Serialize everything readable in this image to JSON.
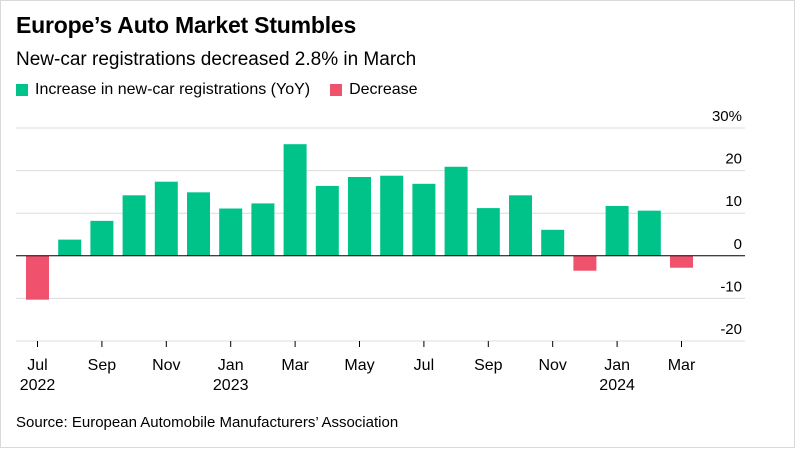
{
  "title": "Europe’s Auto Market Stumbles",
  "subtitle": "New-car registrations decreased 2.8% in March",
  "source": "Source: European Automobile Manufacturers’ Association",
  "colors": {
    "increase": "#00c389",
    "decrease": "#f0516c",
    "grid": "#dcdcdc",
    "axis": "#000000"
  },
  "chart_data": {
    "type": "bar",
    "legend": [
      {
        "name": "Increase in new-car registrations (YoY)",
        "color": "#00c389"
      },
      {
        "name": "Decrease",
        "color": "#f0516c"
      }
    ],
    "legend_position": "top-left",
    "categories": [
      "Jul 2022",
      "Aug 2022",
      "Sep 2022",
      "Oct 2022",
      "Nov 2022",
      "Dec 2022",
      "Jan 2023",
      "Feb 2023",
      "Mar 2023",
      "Apr 2023",
      "May 2023",
      "Jun 2023",
      "Jul 2023",
      "Aug 2023",
      "Sep 2023",
      "Oct 2023",
      "Nov 2023",
      "Dec 2023",
      "Jan 2024",
      "Feb 2024",
      "Mar 2024"
    ],
    "values": [
      -10.3,
      3.8,
      8.2,
      14.2,
      17.4,
      14.9,
      11.1,
      12.3,
      26.2,
      16.4,
      18.5,
      18.8,
      16.9,
      20.9,
      11.2,
      14.2,
      6.1,
      -3.5,
      11.7,
      10.6,
      -2.8
    ],
    "ylim": [
      -20,
      30
    ],
    "yticks": [
      -20,
      -10,
      0,
      10,
      20,
      30
    ],
    "ytick_labels": [
      "-20",
      "-10",
      "0",
      "10",
      "20",
      "30%"
    ],
    "y_axis_position": "right",
    "grid": true,
    "xtick_labels": [
      {
        "index": 0,
        "month": "Jul",
        "year": "2022"
      },
      {
        "index": 2,
        "month": "Sep",
        "year": ""
      },
      {
        "index": 4,
        "month": "Nov",
        "year": ""
      },
      {
        "index": 6,
        "month": "Jan",
        "year": "2023"
      },
      {
        "index": 8,
        "month": "Mar",
        "year": ""
      },
      {
        "index": 10,
        "month": "May",
        "year": ""
      },
      {
        "index": 12,
        "month": "Jul",
        "year": ""
      },
      {
        "index": 14,
        "month": "Sep",
        "year": ""
      },
      {
        "index": 16,
        "month": "Nov",
        "year": ""
      },
      {
        "index": 18,
        "month": "Jan",
        "year": "2024"
      },
      {
        "index": 20,
        "month": "Mar",
        "year": ""
      }
    ]
  }
}
